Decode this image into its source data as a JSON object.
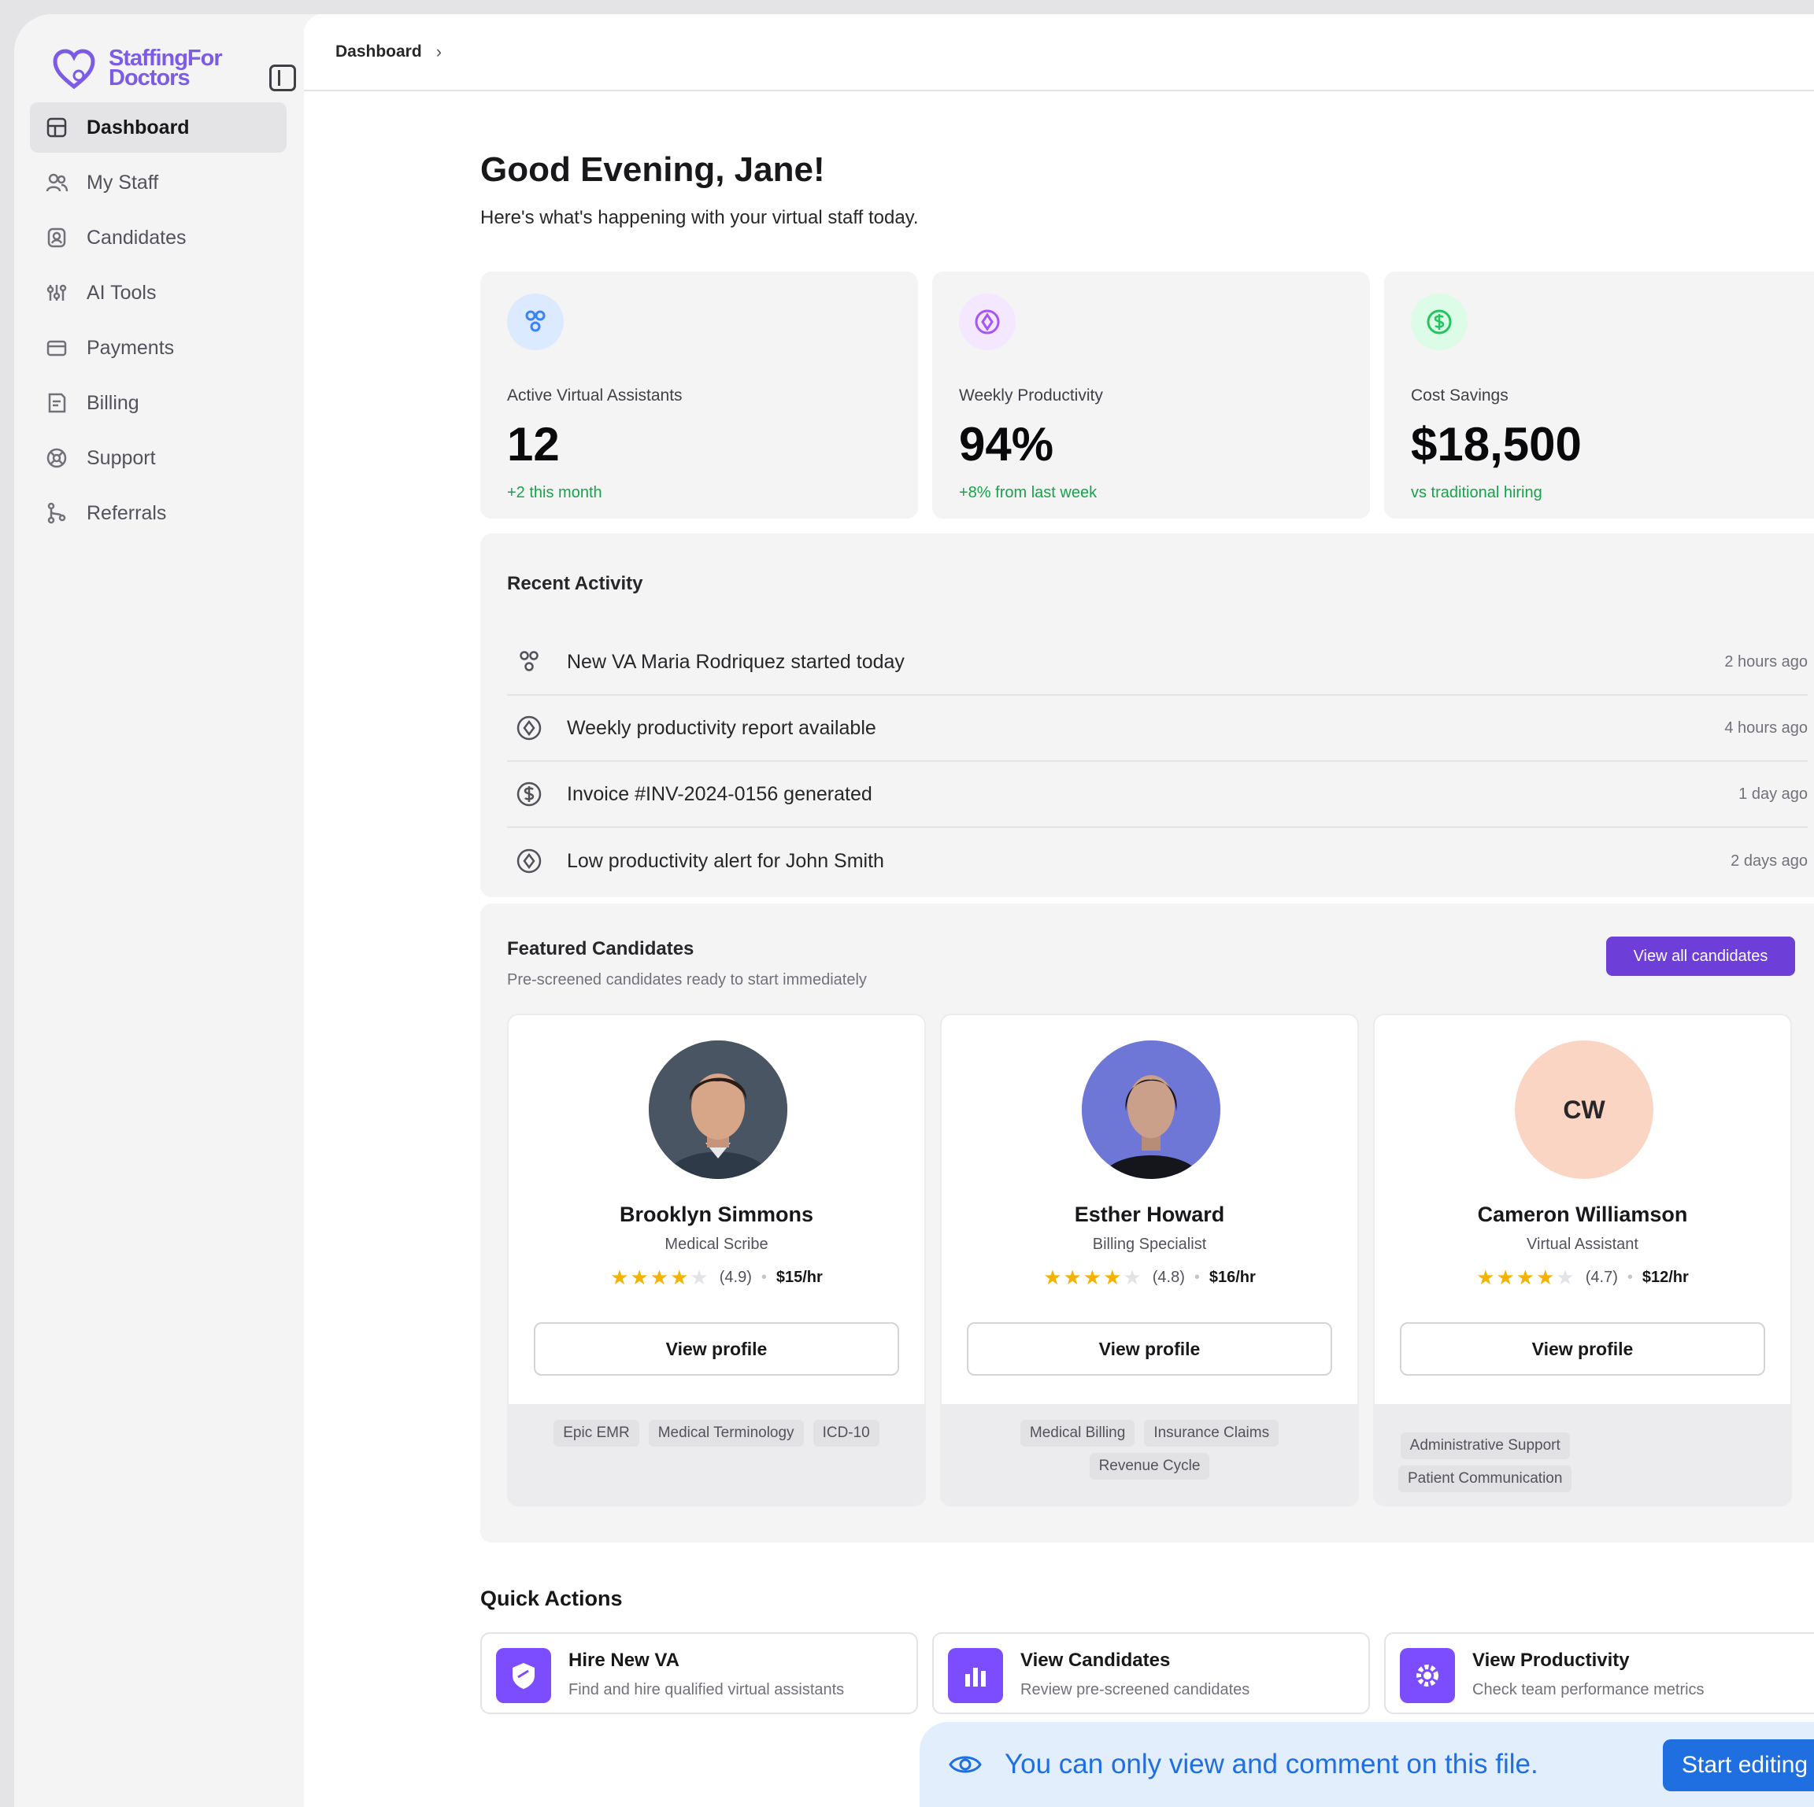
{
  "brand": {
    "line1": "StaffingFor",
    "line2": "Doctors",
    "accent": "#7c5ce6"
  },
  "sidebar": {
    "items": [
      {
        "label": "Dashboard",
        "icon": "dashboard-icon",
        "active": true
      },
      {
        "label": "My Staff",
        "icon": "users-icon"
      },
      {
        "label": "Candidates",
        "icon": "candidates-icon"
      },
      {
        "label": "AI Tools",
        "icon": "ai-tools-icon"
      },
      {
        "label": "Payments",
        "icon": "payments-icon"
      },
      {
        "label": "Billing",
        "icon": "billing-icon"
      },
      {
        "label": "Support",
        "icon": "support-icon"
      },
      {
        "label": "Referrals",
        "icon": "referrals-icon"
      }
    ]
  },
  "breadcrumb": {
    "current": "Dashboard",
    "chevron": "›"
  },
  "header": {
    "greeting": "Good Evening, Jane!",
    "subtitle": "Here's what's happening with your virtual staff today."
  },
  "stats": [
    {
      "label": "Active Virtual Assistants",
      "value": "12",
      "delta": "+2 this month",
      "icon": "users-icon",
      "icon_color": "#3b82f6",
      "icon_bg": "#dbeafe"
    },
    {
      "label": "Weekly Productivity",
      "value": "94%",
      "delta": "+8% from last week",
      "icon": "gauge-icon",
      "icon_color": "#a855f7",
      "icon_bg": "#f3e8ff"
    },
    {
      "label": "Cost Savings",
      "value": "$18,500",
      "delta": "vs traditional hiring",
      "icon": "dollar-icon",
      "icon_color": "#22c55e",
      "icon_bg": "#dcfce7"
    }
  ],
  "activity": {
    "title": "Recent Activity",
    "items": [
      {
        "text": "New VA Maria Rodriquez started today",
        "time": "2 hours ago",
        "icon": "users-icon"
      },
      {
        "text": "Weekly productivity report available",
        "time": "4 hours ago",
        "icon": "gauge-icon"
      },
      {
        "text": "Invoice #INV-2024-0156 generated",
        "time": "1 day ago",
        "icon": "dollar-icon"
      },
      {
        "text": "Low productivity alert for John Smith",
        "time": "2 days ago",
        "icon": "gauge-icon"
      }
    ]
  },
  "featured": {
    "title": "Featured Candidates",
    "subtitle": "Pre-screened candidates ready to start immediately",
    "view_all": "View all candidates",
    "candidates": [
      {
        "name": "Brooklyn Simmons",
        "role": "Medical Scribe",
        "rating": "(4.9)",
        "rate": "$15/hr",
        "button": "View profile",
        "skills": [
          "Epic EMR",
          "Medical Terminology",
          "ICD-10"
        ],
        "avatar": "photo-man"
      },
      {
        "name": "Esther Howard",
        "role": "Billing Specialist",
        "rating": "(4.8)",
        "rate": "$16/hr",
        "button": "View profile",
        "skills": [
          "Medical Billing",
          "Insurance Claims",
          "Revenue Cycle"
        ],
        "avatar": "photo-woman"
      },
      {
        "name": "Cameron Williamson",
        "role": "Virtual Assistant",
        "rating": "(4.7)",
        "rate": "$12/hr",
        "button": "View profile",
        "skills": [
          "Administrative Support",
          "Patient Communication"
        ],
        "initials": "CW",
        "avatar_bg": "#fbd5c4"
      }
    ],
    "stars": "★★★★",
    "star_empty": "★",
    "dot": "•"
  },
  "quick_actions": {
    "title": "Quick Actions",
    "items": [
      {
        "name": "Hire New VA",
        "desc": "Find and hire qualified virtual assistants",
        "icon": "shield-icon"
      },
      {
        "name": "View Candidates",
        "desc": "Review pre-screened candidates",
        "icon": "bar-chart-icon"
      },
      {
        "name": "View Productivity",
        "desc": "Check team performance metrics",
        "icon": "gear-icon"
      }
    ]
  },
  "toast": {
    "message": "You can only view and comment on this file.",
    "button": "Start editing",
    "accent": "#1f6fe0"
  }
}
